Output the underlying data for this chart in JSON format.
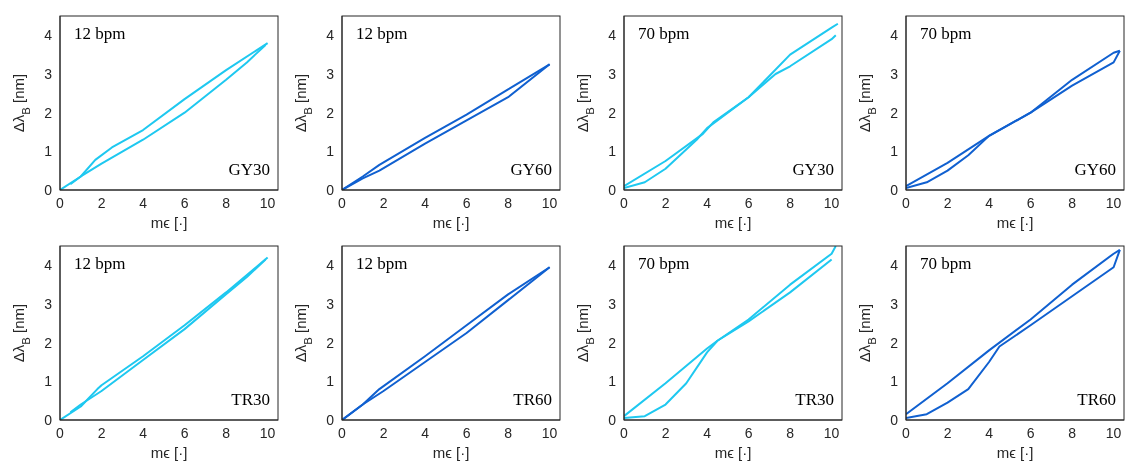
{
  "chart_data": [
    {
      "type": "line",
      "xlabel": "mϵ [·]",
      "ylabel": "Δλ$_{B}$ [nm]",
      "xlim": [
        0,
        10.5
      ],
      "ylim": [
        0,
        4.5
      ],
      "xticks": [
        0,
        2,
        4,
        6,
        8,
        10
      ],
      "yticks": [
        0,
        1,
        2,
        3,
        4
      ],
      "annotations": [
        "12 bpm",
        "GY30"
      ],
      "series": [
        {
          "color": "#1ec8f0",
          "x": [
            0,
            1,
            1.7,
            2.5,
            4,
            6,
            8,
            10
          ],
          "values": [
            0,
            0.35,
            0.78,
            1.1,
            1.55,
            2.35,
            3.1,
            3.8
          ]
        },
        {
          "color": "#1ec8f0",
          "x": [
            0.5,
            1,
            2,
            4,
            6,
            8,
            9,
            9.9
          ],
          "values": [
            0.15,
            0.35,
            0.68,
            1.3,
            2.0,
            2.85,
            3.3,
            3.75
          ]
        }
      ]
    },
    {
      "type": "line",
      "xlabel": "mϵ [·]",
      "ylabel": "Δλ$_{B}$ [nm]",
      "xlim": [
        0,
        10.5
      ],
      "ylim": [
        0,
        4.5
      ],
      "xticks": [
        0,
        2,
        4,
        6,
        8,
        10
      ],
      "yticks": [
        0,
        1,
        2,
        3,
        4
      ],
      "annotations": [
        "12 bpm",
        "GY60"
      ],
      "series": [
        {
          "color": "#1060d0",
          "x": [
            0,
            1,
            1.8,
            4,
            6,
            8,
            10
          ],
          "values": [
            0,
            0.35,
            0.65,
            1.35,
            1.95,
            2.6,
            3.25
          ]
        },
        {
          "color": "#1060d0",
          "x": [
            0,
            1,
            1.8,
            4,
            6,
            8,
            10
          ],
          "values": [
            0,
            0.3,
            0.5,
            1.2,
            1.8,
            2.4,
            3.25
          ]
        }
      ]
    },
    {
      "type": "line",
      "xlabel": "mϵ [·]",
      "ylabel": "Δλ$_{B}$ [nm]",
      "xlim": [
        0,
        10.5
      ],
      "ylim": [
        0,
        4.5
      ],
      "xticks": [
        0,
        2,
        4,
        6,
        8,
        10
      ],
      "yticks": [
        0,
        1,
        2,
        3,
        4
      ],
      "annotations": [
        "70 bpm",
        "GY30"
      ],
      "series": [
        {
          "color": "#1ec8f0",
          "x": [
            0,
            2,
            3.8,
            4.3,
            6,
            7,
            8,
            10,
            10.3
          ],
          "values": [
            0.1,
            0.75,
            1.45,
            1.75,
            2.4,
            2.95,
            3.5,
            4.2,
            4.3
          ]
        },
        {
          "color": "#1ec8f0",
          "x": [
            0,
            1,
            2,
            3.5,
            4,
            6,
            7.3,
            8,
            10,
            10.2
          ],
          "values": [
            0.05,
            0.2,
            0.55,
            1.3,
            1.6,
            2.4,
            3.0,
            3.2,
            3.9,
            4.0
          ]
        }
      ]
    },
    {
      "type": "line",
      "xlabel": "mϵ [·]",
      "ylabel": "Δλ$_{B}$ [nm]",
      "xlim": [
        0,
        10.5
      ],
      "ylim": [
        0,
        4.5
      ],
      "xticks": [
        0,
        2,
        4,
        6,
        8,
        10
      ],
      "yticks": [
        0,
        1,
        2,
        3,
        4
      ],
      "annotations": [
        "70 bpm",
        "GY60"
      ],
      "series": [
        {
          "color": "#1060d0",
          "x": [
            0,
            2,
            4,
            6,
            8,
            10,
            10.3
          ],
          "values": [
            0.1,
            0.7,
            1.4,
            2.0,
            2.85,
            3.55,
            3.6
          ]
        },
        {
          "color": "#1060d0",
          "x": [
            0,
            1,
            2,
            3,
            4,
            6,
            8,
            10,
            10.3
          ],
          "values": [
            0.05,
            0.2,
            0.5,
            0.9,
            1.4,
            2.0,
            2.7,
            3.3,
            3.6
          ]
        }
      ]
    },
    {
      "type": "line",
      "xlabel": "mϵ [·]",
      "ylabel": "Δλ$_{B}$ [nm]",
      "xlim": [
        0,
        10.5
      ],
      "ylim": [
        0,
        4.5
      ],
      "xticks": [
        0,
        2,
        4,
        6,
        8,
        10
      ],
      "yticks": [
        0,
        1,
        2,
        3,
        4
      ],
      "annotations": [
        "12 bpm",
        "TR30"
      ],
      "series": [
        {
          "color": "#1ec8f0",
          "x": [
            0,
            1,
            1.8,
            2,
            4,
            6,
            8,
            10
          ],
          "values": [
            0,
            0.35,
            0.8,
            0.9,
            1.65,
            2.45,
            3.3,
            4.2
          ]
        },
        {
          "color": "#1ec8f0",
          "x": [
            0.5,
            1,
            2,
            4,
            6,
            8,
            9,
            9.9
          ],
          "values": [
            0.2,
            0.4,
            0.75,
            1.55,
            2.35,
            3.25,
            3.7,
            4.15
          ]
        }
      ]
    },
    {
      "type": "line",
      "xlabel": "mϵ [·]",
      "ylabel": "Δλ$_{B}$ [nm]",
      "xlim": [
        0,
        10.5
      ],
      "ylim": [
        0,
        4.5
      ],
      "xticks": [
        0,
        2,
        4,
        6,
        8,
        10
      ],
      "yticks": [
        0,
        1,
        2,
        3,
        4
      ],
      "annotations": [
        "12 bpm",
        "TR60"
      ],
      "series": [
        {
          "color": "#1060d0",
          "x": [
            0,
            1,
            1.8,
            4,
            6,
            8,
            10
          ],
          "values": [
            0,
            0.4,
            0.8,
            1.65,
            2.45,
            3.25,
            3.95
          ]
        },
        {
          "color": "#1060d0",
          "x": [
            0,
            1,
            2,
            4,
            6,
            8,
            10
          ],
          "values": [
            0,
            0.4,
            0.75,
            1.5,
            2.25,
            3.1,
            3.95
          ]
        }
      ]
    },
    {
      "type": "line",
      "xlabel": "mϵ [·]",
      "ylabel": "Δλ$_{B}$ [nm]",
      "xlim": [
        0,
        10.5
      ],
      "ylim": [
        0,
        4.5
      ],
      "xticks": [
        0,
        2,
        4,
        6,
        8,
        10
      ],
      "yticks": [
        0,
        1,
        2,
        3,
        4
      ],
      "annotations": [
        "70 bpm",
        "TR30"
      ],
      "series": [
        {
          "color": "#1ec8f0",
          "x": [
            0,
            2,
            4,
            4.5,
            6,
            8,
            10,
            10.2
          ],
          "values": [
            0.1,
            0.95,
            1.85,
            2.05,
            2.6,
            3.5,
            4.3,
            4.5
          ]
        },
        {
          "color": "#1ec8f0",
          "x": [
            0,
            1,
            2,
            3,
            4,
            4.5,
            6,
            8,
            10
          ],
          "values": [
            0.05,
            0.1,
            0.4,
            0.95,
            1.75,
            2.05,
            2.55,
            3.3,
            4.15
          ]
        }
      ]
    },
    {
      "type": "line",
      "xlabel": "mϵ [·]",
      "ylabel": "Δλ$_{B}$ [nm]",
      "xlim": [
        0,
        10.5
      ],
      "ylim": [
        0,
        4.5
      ],
      "xticks": [
        0,
        2,
        4,
        6,
        8,
        10
      ],
      "yticks": [
        0,
        1,
        2,
        3,
        4
      ],
      "annotations": [
        "70 bpm",
        "TR60"
      ],
      "series": [
        {
          "color": "#1060d0",
          "x": [
            0,
            2,
            4,
            6,
            8,
            10,
            10.3
          ],
          "values": [
            0.15,
            0.95,
            1.8,
            2.6,
            3.5,
            4.3,
            4.4
          ]
        },
        {
          "color": "#1060d0",
          "x": [
            0,
            1,
            2,
            3,
            4,
            4.5,
            6,
            8,
            10,
            10.3
          ],
          "values": [
            0.05,
            0.15,
            0.45,
            0.8,
            1.5,
            1.9,
            2.45,
            3.2,
            3.95,
            4.4
          ]
        }
      ]
    }
  ]
}
